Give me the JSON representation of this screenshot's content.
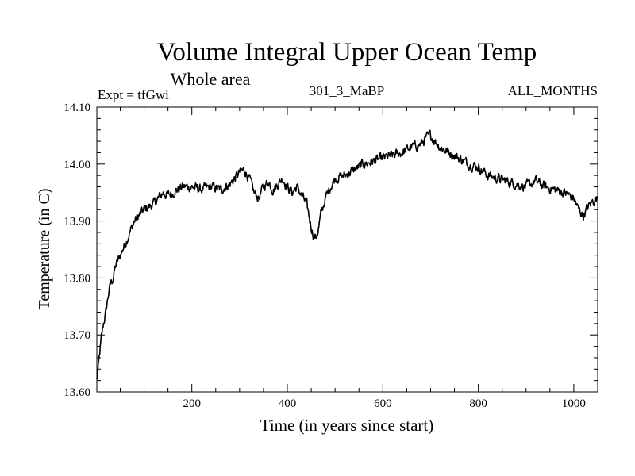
{
  "chart_data": {
    "type": "line",
    "title": "Volume Integral Upper Ocean Temp",
    "subtitle": "Whole area",
    "expt_label": "Expt = tfGwi",
    "center_label": "301_3_MaBP",
    "right_label": "ALL_MONTHS",
    "xlabel": "Time (in years since start)",
    "ylabel": "Temperature (in C)",
    "xlim": [
      1,
      1050
    ],
    "ylim": [
      13.6,
      14.1
    ],
    "xticks": [
      200,
      400,
      600,
      800,
      1000
    ],
    "yticks": [
      13.6,
      13.7,
      13.8,
      13.9,
      14.0,
      14.1
    ],
    "ytick_labels": [
      "13.60",
      "13.70",
      "13.80",
      "13.90",
      "14.00",
      "14.10"
    ],
    "grid": false,
    "series": [
      {
        "name": "Volume integral upper ocean temperature",
        "x": [
          1,
          5,
          10,
          15,
          20,
          25,
          30,
          35,
          40,
          45,
          50,
          55,
          60,
          70,
          80,
          90,
          100,
          110,
          120,
          130,
          140,
          150,
          160,
          170,
          180,
          200,
          220,
          240,
          260,
          280,
          290,
          300,
          310,
          320,
          330,
          340,
          350,
          360,
          370,
          380,
          390,
          400,
          410,
          420,
          430,
          440,
          445,
          450,
          455,
          460,
          465,
          470,
          480,
          490,
          500,
          520,
          540,
          560,
          580,
          600,
          620,
          640,
          660,
          680,
          690,
          700,
          710,
          720,
          740,
          760,
          780,
          800,
          820,
          840,
          860,
          880,
          900,
          920,
          940,
          960,
          980,
          1000,
          1010,
          1020,
          1030,
          1040,
          1050
        ],
        "y": [
          13.62,
          13.65,
          13.69,
          13.72,
          13.74,
          13.77,
          13.79,
          13.8,
          13.82,
          13.83,
          13.84,
          13.85,
          13.86,
          13.88,
          13.9,
          13.91,
          13.92,
          13.925,
          13.93,
          13.94,
          13.95,
          13.945,
          13.95,
          13.955,
          13.96,
          13.96,
          13.955,
          13.96,
          13.955,
          13.965,
          13.975,
          13.985,
          13.99,
          13.975,
          13.95,
          13.94,
          13.96,
          13.97,
          13.955,
          13.965,
          13.975,
          13.96,
          13.95,
          13.96,
          13.945,
          13.93,
          13.91,
          13.89,
          13.875,
          13.87,
          13.885,
          13.91,
          13.94,
          13.96,
          13.975,
          13.98,
          13.99,
          14.0,
          14.005,
          14.01,
          14.015,
          14.02,
          14.03,
          14.035,
          14.045,
          14.05,
          14.04,
          14.03,
          14.02,
          14.01,
          14.0,
          13.995,
          13.98,
          13.975,
          13.97,
          13.965,
          13.96,
          13.97,
          13.96,
          13.955,
          13.95,
          13.94,
          13.92,
          13.91,
          13.925,
          13.935,
          13.94
        ]
      }
    ]
  }
}
